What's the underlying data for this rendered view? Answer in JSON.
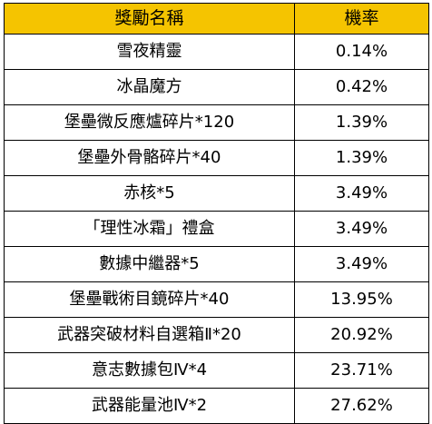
{
  "table": {
    "headers": {
      "name": "獎勵名稱",
      "rate": "機率"
    },
    "rows": [
      {
        "name": "雪夜精靈",
        "rate": "0.14%"
      },
      {
        "name": "冰晶魔方",
        "rate": "0.42%"
      },
      {
        "name": "堡壘微反應爐碎片*120",
        "rate": "1.39%"
      },
      {
        "name": "堡壘外骨骼碎片*40",
        "rate": "1.39%"
      },
      {
        "name": "赤核*5",
        "rate": "3.49%"
      },
      {
        "name": "「理性冰霜」禮盒",
        "rate": "3.49%"
      },
      {
        "name": "數據中繼器*5",
        "rate": "3.49%"
      },
      {
        "name": "堡壘戰術目鏡碎片*40",
        "rate": "13.95%"
      },
      {
        "name": "武器突破材料自選箱Ⅱ*20",
        "rate": "20.92%"
      },
      {
        "name": "意志數據包Ⅳ*4",
        "rate": "23.71%"
      },
      {
        "name": "武器能量池Ⅳ*2",
        "rate": "27.62%"
      }
    ]
  },
  "colors": {
    "header_background": "#f5c400",
    "border": "#000000",
    "text": "#000000"
  }
}
